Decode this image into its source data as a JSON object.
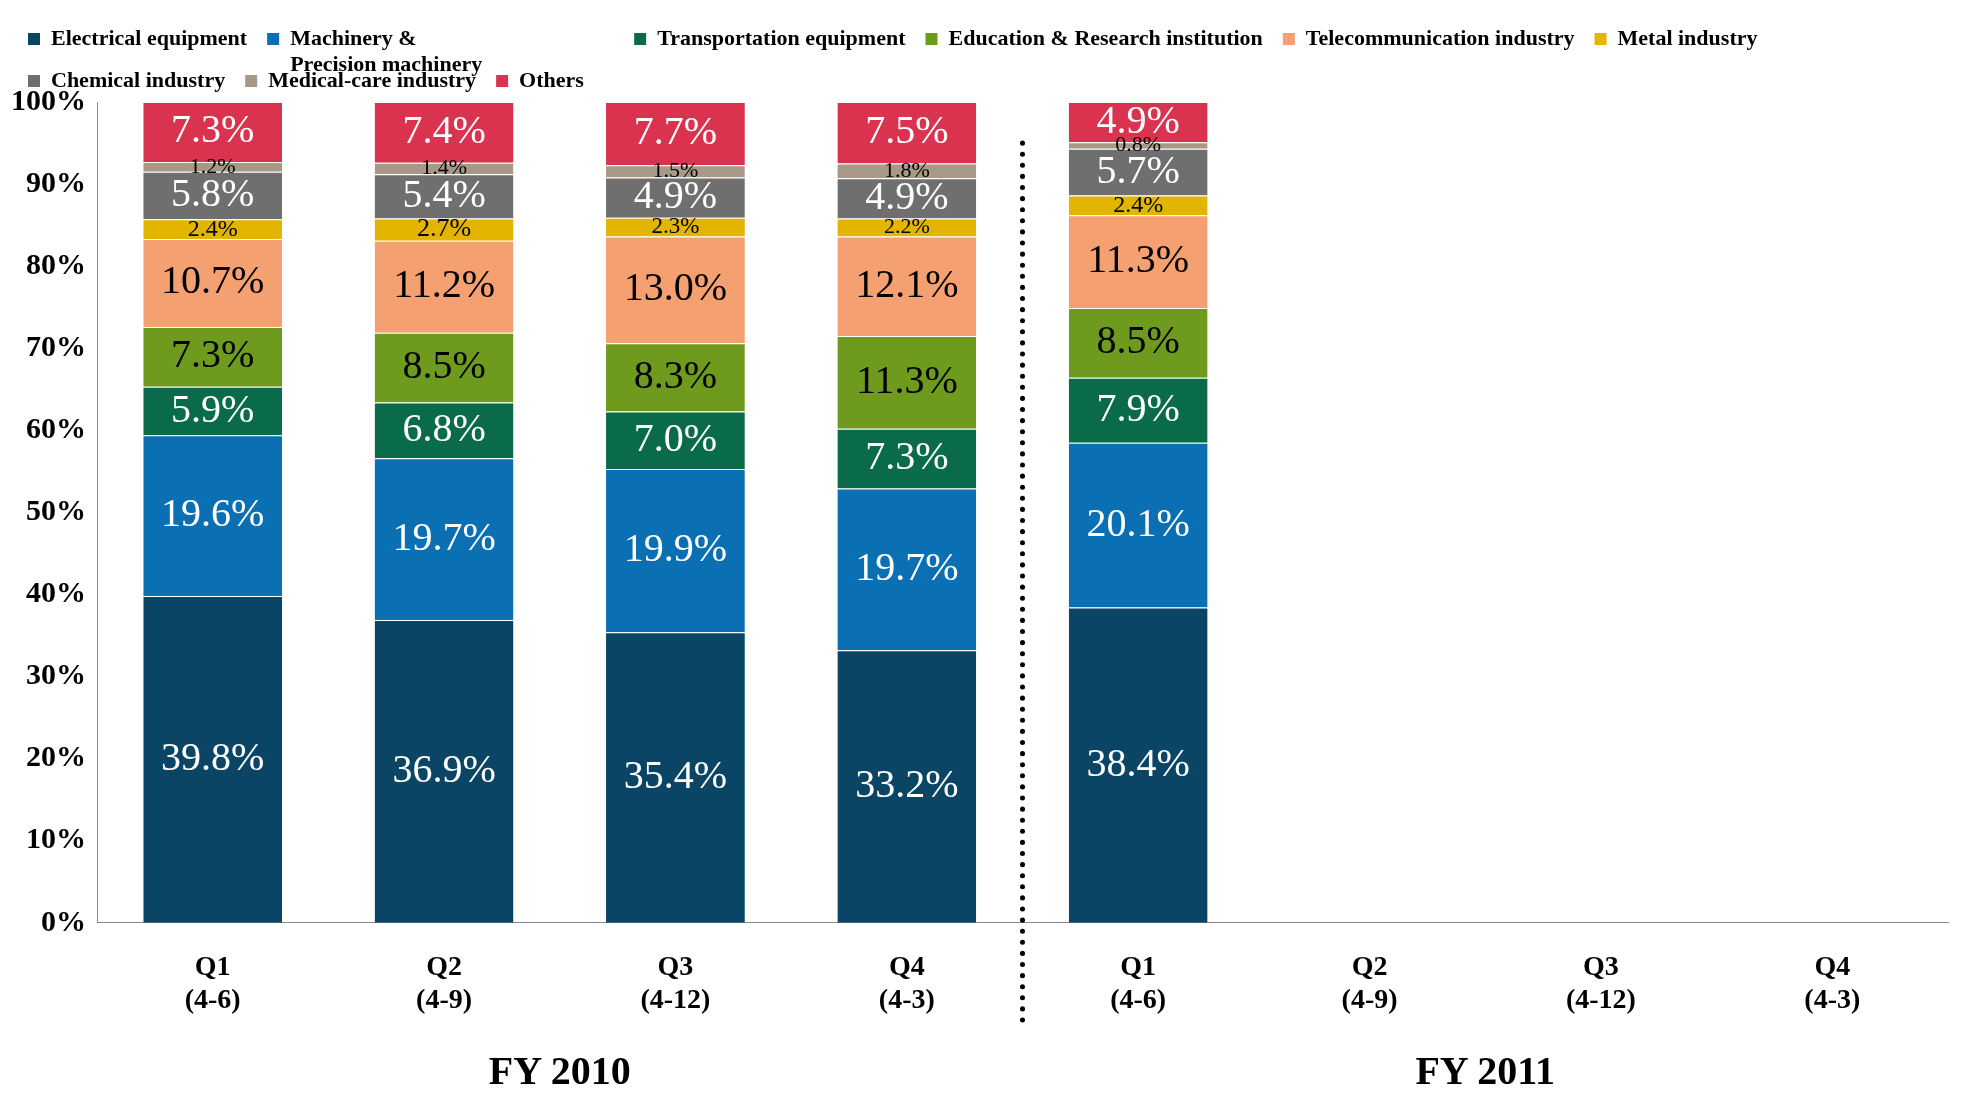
{
  "chart_data": {
    "type": "bar",
    "stacked": true,
    "categories": [
      "Q1\n(4-6)",
      "Q2\n(4-9)",
      "Q3\n(4-12)",
      "Q4\n(4-3)",
      "Q1\n(4-6)",
      "Q2\n(4-9)",
      "Q3\n(4-12)",
      "Q4\n(4-3)"
    ],
    "series": [
      {
        "name": "Electrical equipment",
        "color": "#0b4566",
        "values": [
          39.8,
          36.9,
          35.4,
          33.2,
          38.4,
          null,
          null,
          null
        ],
        "value_labels": [
          "39.8%",
          "36.9%",
          "35.4%",
          "33.2%",
          "38.4%",
          null,
          null,
          null
        ]
      },
      {
        "name": "Machinery &\nPrecision machinery",
        "color": "#0a6fb3",
        "values": [
          19.6,
          19.7,
          19.9,
          19.7,
          20.1,
          null,
          null,
          null
        ],
        "value_labels": [
          "19.6%",
          "19.7%",
          "19.9%",
          "19.7%",
          "20.1%",
          null,
          null,
          null
        ]
      },
      {
        "name": "Transportation equipment",
        "color": "#0a6b4a",
        "values": [
          5.9,
          6.8,
          7.0,
          7.3,
          7.9,
          null,
          null,
          null
        ],
        "value_labels": [
          "5.9%",
          "6.8%",
          "7.0%",
          "7.3%",
          "7.9%",
          null,
          null,
          null
        ]
      },
      {
        "name": "Education & Research institution",
        "color": "#6e9a1e",
        "values": [
          7.3,
          8.5,
          8.3,
          11.3,
          8.5,
          null,
          null,
          null
        ],
        "value_labels": [
          "7.3%",
          "8.5%",
          "8.3%",
          "11.3%",
          "8.5%",
          null,
          null,
          null
        ]
      },
      {
        "name": "Telecommunication industry",
        "color": "#f5a070",
        "values": [
          10.7,
          11.2,
          13.0,
          12.1,
          11.3,
          null,
          null,
          null
        ],
        "value_labels": [
          "10.7%",
          "11.2%",
          "13.0%",
          "12.1%",
          "11.3%",
          null,
          null,
          null
        ]
      },
      {
        "name": "Metal industry",
        "color": "#e3b400",
        "values": [
          2.4,
          2.7,
          2.3,
          2.2,
          2.4,
          null,
          null,
          null
        ],
        "value_labels": [
          "2.4%",
          "2.7%",
          "2.3%",
          "2.2%",
          "2.4%",
          null,
          null,
          null
        ]
      },
      {
        "name": "Chemical industry",
        "color": "#6f6f6f",
        "values": [
          5.8,
          5.4,
          4.9,
          4.9,
          5.7,
          null,
          null,
          null
        ],
        "value_labels": [
          "5.8%",
          "5.4%",
          "4.9%",
          "4.9%",
          "5.7%",
          null,
          null,
          null
        ]
      },
      {
        "name": "Medical-care industry",
        "color": "#a89886",
        "values": [
          1.2,
          1.4,
          1.5,
          1.8,
          0.8,
          null,
          null,
          null
        ],
        "value_labels": [
          "1.2%",
          "1.4%",
          "1.5%",
          "1.8%",
          "0.8%",
          null,
          null,
          null
        ]
      },
      {
        "name": "Others",
        "color": "#d9334f",
        "values": [
          7.3,
          7.4,
          7.7,
          7.5,
          4.9,
          null,
          null,
          null
        ],
        "value_labels": [
          "7.3%",
          "7.4%",
          "7.7%",
          "7.5%",
          "4.9%",
          null,
          null,
          null
        ]
      }
    ],
    "ylim": [
      0,
      100
    ],
    "yticks": [
      {
        "value": 0,
        "label": "0%"
      },
      {
        "value": 10,
        "label": "10%"
      },
      {
        "value": 20,
        "label": "20%"
      },
      {
        "value": 30,
        "label": "30%"
      },
      {
        "value": 40,
        "label": "40%"
      },
      {
        "value": 50,
        "label": "50%"
      },
      {
        "value": 60,
        "label": "60%"
      },
      {
        "value": 70,
        "label": "70%"
      },
      {
        "value": 80,
        "label": "80%"
      },
      {
        "value": 90,
        "label": "90%"
      },
      {
        "value": 100,
        "label": "100%"
      }
    ],
    "legend": "top",
    "annotations": [
      "FY 2010",
      "FY 2011"
    ]
  }
}
